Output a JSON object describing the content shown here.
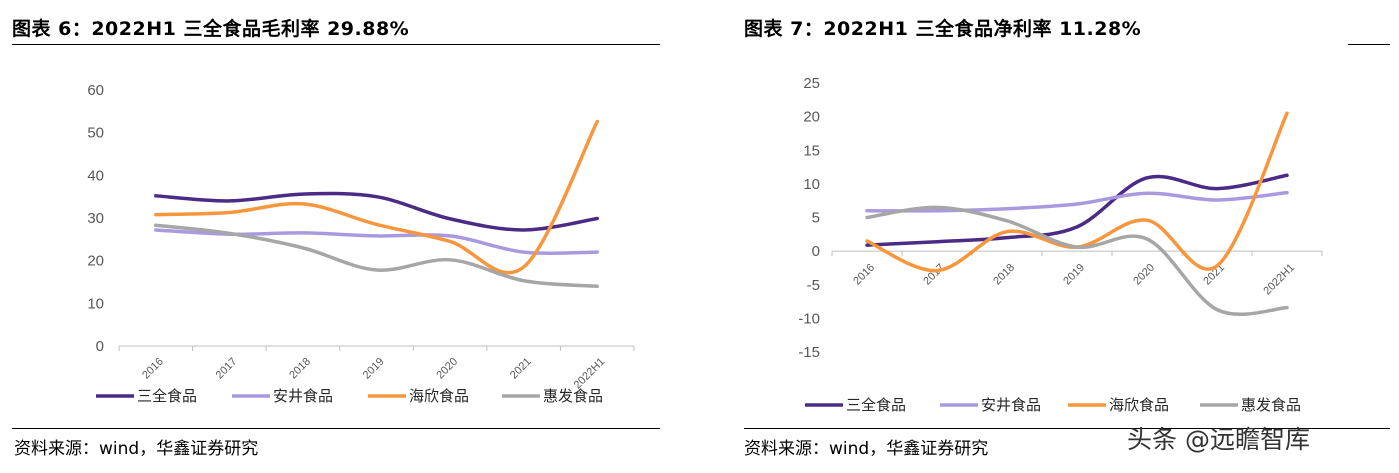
{
  "left": {
    "title": "图表 6：2022H1 三全食品毛利率 29.88%",
    "source": "资料来源：wind，华鑫证券研究"
  },
  "right": {
    "title": "图表 7：2022H1 三全食品净利率 11.28%",
    "source": "资料来源：wind，华鑫证券研究"
  },
  "watermark": "头条 @远瞻智库",
  "colors": {
    "三全食品": "#4b2b85",
    "安井食品": "#a99ae0",
    "海欣食品": "#f7963c",
    "惠发食品": "#a6a6a6"
  },
  "chart_data": [
    {
      "type": "line",
      "categories": [
        "2016",
        "2017",
        "2018",
        "2019",
        "2020",
        "2021",
        "2022H1"
      ],
      "ylim": [
        0,
        60
      ],
      "yticks": [
        0,
        10,
        20,
        30,
        40,
        50,
        60
      ],
      "grid": false,
      "legend": "bottom",
      "series": [
        {
          "name": "三全食品",
          "values": [
            35.2,
            34.0,
            35.6,
            35.0,
            29.8,
            27.2,
            29.88
          ]
        },
        {
          "name": "安井食品",
          "values": [
            27.2,
            26.2,
            26.5,
            25.8,
            25.8,
            22.0,
            22.0
          ]
        },
        {
          "name": "海欣食品",
          "values": [
            30.8,
            31.3,
            33.3,
            28.5,
            24.5,
            18.5,
            52.6
          ]
        },
        {
          "name": "惠发食品",
          "values": [
            28.3,
            26.4,
            23.0,
            17.8,
            20.2,
            15.3,
            14.0
          ]
        }
      ]
    },
    {
      "type": "line",
      "categories": [
        "2016",
        "2017",
        "2018",
        "2019",
        "2020",
        "2021",
        "2022H1"
      ],
      "ylim": [
        -15,
        25
      ],
      "yticks": [
        -15,
        -10,
        -5,
        0,
        5,
        10,
        15,
        20,
        25
      ],
      "grid": false,
      "legend": "bottom",
      "series": [
        {
          "name": "三全食品",
          "values": [
            0.9,
            1.4,
            2.0,
            3.6,
            10.9,
            9.3,
            11.28
          ]
        },
        {
          "name": "安井食品",
          "values": [
            6.0,
            6.0,
            6.3,
            7.0,
            8.6,
            7.6,
            8.7
          ]
        },
        {
          "name": "海欣食品",
          "values": [
            1.5,
            -2.9,
            2.9,
            0.6,
            4.6,
            -2.2,
            20.5
          ]
        },
        {
          "name": "惠发食品",
          "values": [
            5.0,
            6.5,
            4.5,
            0.6,
            1.8,
            -8.7,
            -8.4
          ]
        }
      ]
    }
  ]
}
